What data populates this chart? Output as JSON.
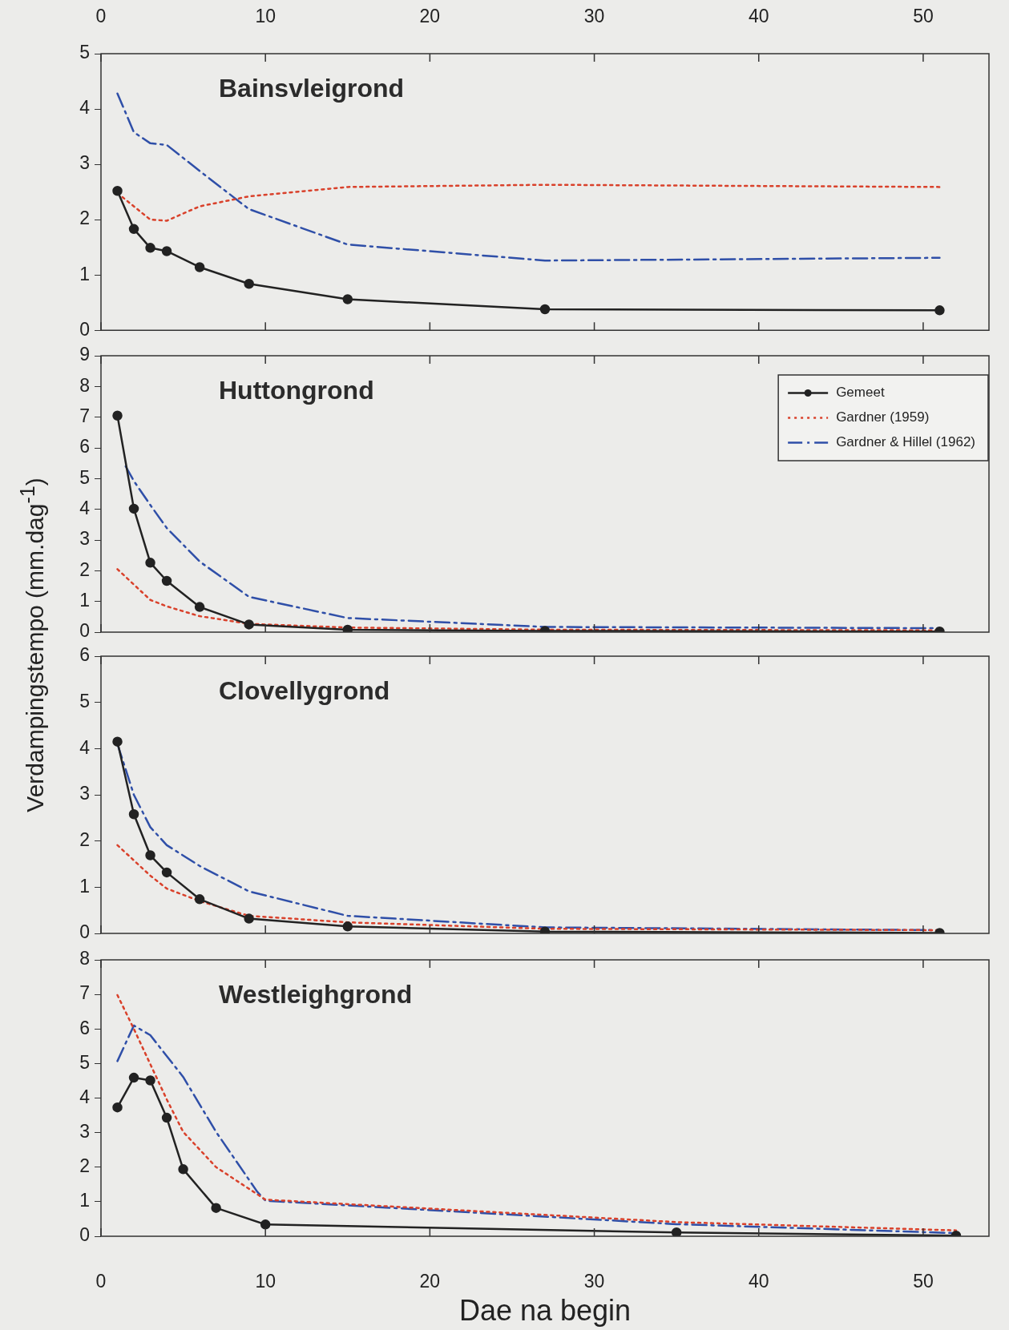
{
  "chart_data": [
    {
      "type": "line",
      "title": "Bainsvleigrond",
      "xlim": [
        0,
        54
      ],
      "xticks": [
        0,
        10,
        20,
        30,
        40,
        50
      ],
      "ylim": [
        0,
        5
      ],
      "yticks": [
        0,
        1,
        2,
        3,
        4,
        5
      ],
      "grid": false,
      "legend": false,
      "series": [
        {
          "color": "#222222",
          "marker": "circle",
          "line_style": "solid",
          "x": [
            1,
            2,
            3,
            4,
            6,
            9,
            15,
            27,
            51
          ],
          "values": [
            2.52,
            1.83,
            1.49,
            1.43,
            1.14,
            0.84,
            0.56,
            0.38,
            0.36
          ]
        },
        {
          "color": "#d9412b",
          "marker": "none",
          "line_style": "dotted",
          "x": [
            1,
            3,
            4,
            6,
            9,
            15,
            27,
            51
          ],
          "values": [
            2.48,
            2.0,
            1.98,
            2.24,
            2.42,
            2.59,
            2.63,
            2.59
          ]
        },
        {
          "color": "#2f4fa8",
          "marker": "none",
          "line_style": "dashed",
          "x": [
            1,
            2,
            3,
            4,
            6,
            9,
            15,
            27,
            51
          ],
          "values": [
            4.28,
            3.58,
            3.38,
            3.35,
            2.88,
            2.19,
            1.55,
            1.26,
            1.31
          ]
        }
      ]
    },
    {
      "type": "line",
      "title": "Huttongrond",
      "ylabel": "Verdampingstempo (mm.dag$^{-1}$)",
      "xlim": [
        0,
        54
      ],
      "xticks": [
        0,
        10,
        20,
        30,
        40,
        50
      ],
      "ylim": [
        0,
        9
      ],
      "yticks": [
        0,
        1,
        2,
        3,
        4,
        5,
        6,
        7,
        8,
        9
      ],
      "tick_labels": "y",
      "grid": false,
      "legend": "top right",
      "series": [
        {
          "name": "Gemeet",
          "color": "#222222",
          "marker": "circle",
          "line_style": "solid",
          "x": [
            1,
            2,
            3,
            4,
            6,
            9,
            15,
            27,
            51
          ],
          "values": [
            7.05,
            4.02,
            2.26,
            1.67,
            0.82,
            0.25,
            0.08,
            0.04,
            0.02
          ]
        },
        {
          "name": "Gardner (1959)",
          "color": "#d9412b",
          "marker": "none",
          "line_style": "dotted",
          "x": [
            1,
            3,
            4,
            6,
            9,
            15,
            27,
            51
          ],
          "values": [
            2.05,
            1.05,
            0.84,
            0.52,
            0.27,
            0.15,
            0.08,
            0.06
          ]
        },
        {
          "name": "Gardner & Hillel (1962)",
          "color": "#2f4fa8",
          "marker": "none",
          "line_style": "dashed",
          "x": [
            1.5,
            2,
            3,
            4,
            6,
            9,
            15,
            27,
            51
          ],
          "values": [
            5.4,
            4.92,
            4.14,
            3.39,
            2.3,
            1.15,
            0.46,
            0.17,
            0.13
          ]
        }
      ]
    },
    {
      "type": "line",
      "title": "Clovellygrond",
      "xlim": [
        0,
        54
      ],
      "xticks": [
        0,
        10,
        20,
        30,
        40,
        50
      ],
      "ylim": [
        0,
        6
      ],
      "yticks": [
        0,
        1,
        2,
        3,
        4,
        5,
        6
      ],
      "tick_labels": "y",
      "grid": false,
      "legend": false,
      "series": [
        {
          "color": "#222222",
          "marker": "circle",
          "line_style": "solid",
          "x": [
            1,
            2,
            3,
            4,
            6,
            9,
            15,
            27,
            51
          ],
          "values": [
            4.15,
            2.58,
            1.69,
            1.32,
            0.74,
            0.32,
            0.15,
            0.04,
            0.01
          ]
        },
        {
          "color": "#d9412b",
          "marker": "none",
          "line_style": "dotted",
          "x": [
            1,
            3,
            4,
            6,
            9,
            15,
            27,
            51
          ],
          "values": [
            1.91,
            1.25,
            0.97,
            0.7,
            0.38,
            0.24,
            0.1,
            0.07
          ]
        },
        {
          "color": "#2f4fa8",
          "marker": "none",
          "line_style": "dashed",
          "x": [
            1,
            2,
            3,
            4,
            6,
            9,
            15,
            27,
            51
          ],
          "values": [
            4.1,
            3.0,
            2.3,
            1.91,
            1.46,
            0.91,
            0.38,
            0.13,
            0.07
          ]
        }
      ]
    },
    {
      "type": "line",
      "title": "Westleighgrond",
      "xlabel": "Dae na begin",
      "xlim": [
        0,
        54
      ],
      "xticks": [
        0,
        10,
        20,
        30,
        40,
        50
      ],
      "ylim": [
        0,
        8
      ],
      "yticks": [
        0,
        1,
        2,
        3,
        4,
        5,
        6,
        7,
        8
      ],
      "grid": false,
      "legend": false,
      "series": [
        {
          "color": "#222222",
          "marker": "circle",
          "line_style": "solid",
          "x": [
            1,
            2,
            3,
            4,
            5,
            7,
            10,
            35,
            52
          ],
          "values": [
            3.73,
            4.59,
            4.51,
            3.43,
            1.94,
            0.82,
            0.34,
            0.11,
            0.02
          ]
        },
        {
          "color": "#d9412b",
          "marker": "none",
          "line_style": "dotted",
          "x": [
            1,
            2,
            3,
            4,
            5,
            7,
            10,
            35,
            52
          ],
          "values": [
            6.98,
            6.0,
            4.98,
            3.96,
            3.02,
            2.0,
            1.06,
            0.41,
            0.17
          ]
        },
        {
          "color": "#2f4fa8",
          "marker": "none",
          "line_style": "dashed",
          "x": [
            1,
            2,
            3,
            5,
            7,
            9.5,
            10,
            35,
            52
          ],
          "values": [
            5.07,
            6.1,
            5.82,
            4.61,
            3.02,
            1.29,
            1.03,
            0.35,
            0.09
          ]
        }
      ]
    }
  ]
}
